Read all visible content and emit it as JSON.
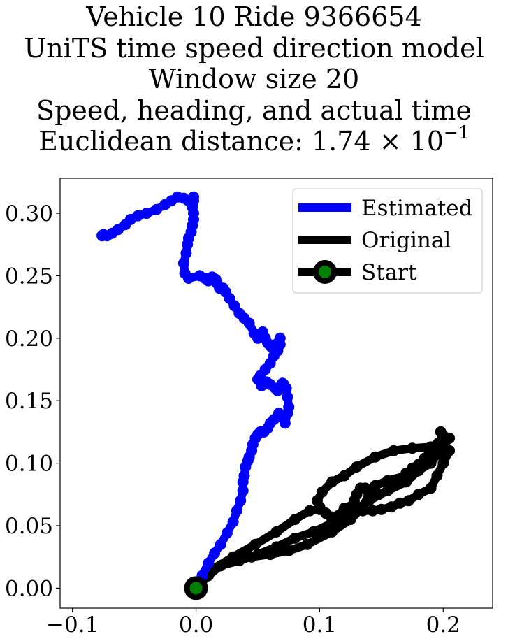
{
  "title_lines": [
    "Vehicle 10 Ride 9366654",
    "UniTS time speed direction model",
    "Window size 20",
    "Speed, heading, and actual time"
  ],
  "title_last": {
    "prefix": "Euclidean distance: ",
    "mantissa": "1.74",
    "times": "×",
    "base": "10",
    "exponent": "−1"
  },
  "chart_data": {
    "type": "line",
    "xlim": [
      -0.11,
      0.24
    ],
    "ylim": [
      -0.016,
      0.328
    ],
    "xticks": [
      -0.1,
      0.0,
      0.1,
      0.2
    ],
    "xtick_labels": [
      "−0.1",
      "0.0",
      "0.1",
      "0.2"
    ],
    "yticks": [
      0.0,
      0.05,
      0.1,
      0.15,
      0.2,
      0.25,
      0.3
    ],
    "ytick_labels": [
      "0.00",
      "0.05",
      "0.10",
      "0.15",
      "0.20",
      "0.25",
      "0.30"
    ],
    "grid": false,
    "legend_position": "top-right",
    "series": [
      {
        "name": "Estimated",
        "color": "#0000ff",
        "x": [
          0.0,
          0.005,
          0.01,
          0.015,
          0.02,
          0.025,
          0.03,
          0.033,
          0.036,
          0.038,
          0.038,
          0.039,
          0.04,
          0.042,
          0.043,
          0.045,
          0.046,
          0.048,
          0.05,
          0.052,
          0.054,
          0.055,
          0.058,
          0.06,
          0.063,
          0.067,
          0.072,
          0.074,
          0.075,
          0.074,
          0.073,
          0.071,
          0.07,
          0.066,
          0.064,
          0.06,
          0.057,
          0.053,
          0.05,
          0.052,
          0.056,
          0.06,
          0.063,
          0.066,
          0.068,
          0.068,
          0.066,
          0.061,
          0.058,
          0.056,
          0.054,
          0.05,
          0.047,
          0.043,
          0.039,
          0.035,
          0.031,
          0.027,
          0.024,
          0.022,
          0.019,
          0.017,
          0.016,
          0.013,
          0.01,
          0.007,
          0.003,
          -0.006,
          -0.009,
          -0.01,
          -0.008,
          -0.007,
          -0.006,
          -0.004,
          -0.003,
          -0.002,
          -0.002,
          -0.003,
          -0.004,
          -0.002,
          -0.003,
          -0.002,
          -0.003,
          -0.006,
          -0.01,
          -0.015,
          -0.02,
          -0.025,
          -0.032,
          -0.04,
          -0.047,
          -0.053,
          -0.057,
          -0.063,
          -0.068,
          -0.072,
          -0.075,
          -0.076
        ],
        "y": [
          0.0,
          0.01,
          0.02,
          0.028,
          0.035,
          0.044,
          0.053,
          0.062,
          0.07,
          0.078,
          0.085,
          0.09,
          0.097,
          0.102,
          0.105,
          0.11,
          0.115,
          0.12,
          0.123,
          0.125,
          0.125,
          0.125,
          0.128,
          0.132,
          0.135,
          0.14,
          0.132,
          0.14,
          0.145,
          0.153,
          0.16,
          0.163,
          0.164,
          0.158,
          0.16,
          0.163,
          0.165,
          0.162,
          0.167,
          0.17,
          0.175,
          0.18,
          0.186,
          0.19,
          0.195,
          0.2,
          0.196,
          0.193,
          0.196,
          0.2,
          0.205,
          0.2,
          0.204,
          0.212,
          0.216,
          0.22,
          0.226,
          0.232,
          0.237,
          0.24,
          0.24,
          0.244,
          0.247,
          0.249,
          0.246,
          0.248,
          0.25,
          0.248,
          0.252,
          0.26,
          0.268,
          0.275,
          0.28,
          0.285,
          0.29,
          0.295,
          0.3,
          0.305,
          0.31,
          0.31,
          0.307,
          0.313,
          0.31,
          0.31,
          0.312,
          0.313,
          0.31,
          0.307,
          0.303,
          0.3,
          0.298,
          0.295,
          0.291,
          0.287,
          0.284,
          0.282,
          0.283,
          0.282
        ]
      },
      {
        "name": "Original",
        "color": "#000000",
        "x": [
          0.0,
          0.01,
          0.02,
          0.03,
          0.045,
          0.06,
          0.075,
          0.09,
          0.11,
          0.125,
          0.135,
          0.14,
          0.145,
          0.155,
          0.17,
          0.185,
          0.195,
          0.2,
          0.205,
          0.2,
          0.195,
          0.19,
          0.18,
          0.172,
          0.165,
          0.158,
          0.15,
          0.143,
          0.135,
          0.127,
          0.12,
          0.115,
          0.11,
          0.105,
          0.1,
          0.098,
          0.102,
          0.11,
          0.12,
          0.13,
          0.145,
          0.16,
          0.175,
          0.19,
          0.2,
          0.205,
          0.197,
          0.19,
          0.18,
          0.17,
          0.155,
          0.14,
          0.125,
          0.11,
          0.095,
          0.08,
          0.065,
          0.05,
          0.035,
          0.02,
          0.01,
          0.003,
          0.0,
          0.005,
          0.015,
          0.03,
          0.048,
          0.065,
          0.08,
          0.092,
          0.1,
          0.105,
          0.11,
          0.114,
          0.118,
          0.122,
          0.125,
          0.128,
          0.13,
          0.133,
          0.137,
          0.142,
          0.148,
          0.155,
          0.163,
          0.17,
          0.175,
          0.18,
          0.185,
          0.19,
          0.196,
          0.2,
          0.198
        ],
        "y": [
          0.0,
          0.01,
          0.018,
          0.022,
          0.025,
          0.027,
          0.03,
          0.035,
          0.045,
          0.055,
          0.065,
          0.075,
          0.082,
          0.086,
          0.09,
          0.1,
          0.107,
          0.112,
          0.11,
          0.1,
          0.09,
          0.08,
          0.075,
          0.07,
          0.068,
          0.065,
          0.063,
          0.062,
          0.062,
          0.063,
          0.064,
          0.058,
          0.055,
          0.06,
          0.065,
          0.07,
          0.077,
          0.085,
          0.09,
          0.097,
          0.105,
          0.11,
          0.112,
          0.113,
          0.117,
          0.12,
          0.11,
          0.1,
          0.094,
          0.085,
          0.078,
          0.07,
          0.06,
          0.052,
          0.045,
          0.04,
          0.033,
          0.027,
          0.022,
          0.018,
          0.012,
          0.004,
          0.0,
          0.008,
          0.016,
          0.025,
          0.035,
          0.045,
          0.055,
          0.062,
          0.063,
          0.06,
          0.057,
          0.054,
          0.056,
          0.06,
          0.065,
          0.07,
          0.075,
          0.08,
          0.08,
          0.077,
          0.075,
          0.078,
          0.085,
          0.092,
          0.096,
          0.099,
          0.104,
          0.11,
          0.116,
          0.122,
          0.125
        ]
      }
    ],
    "start": {
      "name": "Start",
      "x": 0.0,
      "y": 0.0,
      "marker_color": "#008000",
      "edge_color": "#000000"
    }
  }
}
